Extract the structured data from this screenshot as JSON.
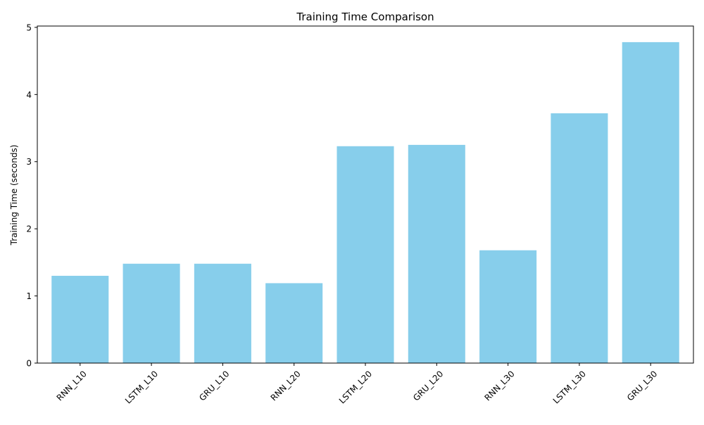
{
  "chart_data": {
    "type": "bar",
    "title": "Training Time Comparison",
    "xlabel": "",
    "ylabel": "Training Time (seconds)",
    "categories": [
      "RNN_L10",
      "LSTM_L10",
      "GRU_L10",
      "RNN_L20",
      "LSTM_L20",
      "GRU_L20",
      "RNN_L30",
      "LSTM_L30",
      "GRU_L30"
    ],
    "values": [
      1.3,
      1.48,
      1.48,
      1.19,
      3.23,
      3.25,
      1.68,
      3.72,
      4.78
    ],
    "ylim": [
      0,
      5.02
    ],
    "yticks": [
      0,
      1,
      2,
      3,
      4,
      5
    ],
    "grid": false,
    "colors": {
      "bar": "#87ceeb",
      "axis": "#000000",
      "background": "#ffffff"
    }
  }
}
